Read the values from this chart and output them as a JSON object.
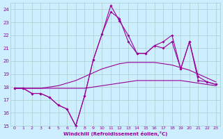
{
  "bg_color": "#cceeff",
  "grid_color": "#aacccc",
  "line_color": "#990099",
  "xlabel": "Windchill (Refroidissement éolien,°C)",
  "xlim": [
    -0.5,
    23.5
  ],
  "ylim": [
    15,
    24.5
  ],
  "yticks": [
    15,
    16,
    17,
    18,
    19,
    20,
    21,
    22,
    23,
    24
  ],
  "xticks": [
    0,
    1,
    2,
    3,
    4,
    5,
    6,
    7,
    8,
    9,
    10,
    11,
    12,
    13,
    14,
    15,
    16,
    17,
    18,
    19,
    20,
    21,
    22,
    23
  ],
  "series": [
    {
      "comment": "flat lower curve - no markers",
      "x": [
        0,
        1,
        2,
        3,
        4,
        5,
        6,
        7,
        8,
        9,
        10,
        11,
        12,
        13,
        14,
        15,
        16,
        17,
        18,
        19,
        20,
        21,
        22,
        23
      ],
      "y": [
        17.9,
        17.9,
        17.9,
        17.9,
        17.9,
        17.9,
        17.9,
        17.9,
        17.9,
        18.0,
        18.1,
        18.2,
        18.3,
        18.4,
        18.5,
        18.5,
        18.5,
        18.5,
        18.5,
        18.5,
        18.4,
        18.3,
        18.2,
        18.1
      ],
      "marker": false
    },
    {
      "comment": "slightly higher flat curve - no markers",
      "x": [
        0,
        1,
        2,
        3,
        4,
        5,
        6,
        7,
        8,
        9,
        10,
        11,
        12,
        13,
        14,
        15,
        16,
        17,
        18,
        19,
        20,
        21,
        22,
        23
      ],
      "y": [
        17.9,
        17.9,
        17.9,
        17.9,
        18.0,
        18.1,
        18.3,
        18.5,
        18.8,
        19.1,
        19.4,
        19.6,
        19.8,
        19.9,
        19.9,
        19.9,
        19.9,
        19.8,
        19.7,
        19.5,
        19.3,
        19.0,
        18.7,
        18.4
      ],
      "marker": false
    },
    {
      "comment": "jagged curve going down then up, with markers",
      "x": [
        0,
        1,
        2,
        3,
        4,
        5,
        6,
        7,
        8,
        9,
        10,
        11,
        12,
        13,
        14,
        15,
        16,
        17,
        18,
        19,
        20,
        21,
        22,
        23
      ],
      "y": [
        17.9,
        17.9,
        17.5,
        17.5,
        17.2,
        16.6,
        16.3,
        15.0,
        17.3,
        20.1,
        22.1,
        23.8,
        23.3,
        21.5,
        20.6,
        20.6,
        21.2,
        21.0,
        21.5,
        19.4,
        21.5,
        18.5,
        18.4,
        18.2
      ],
      "marker": true
    },
    {
      "comment": "second jagged curve similar but offset",
      "x": [
        0,
        1,
        2,
        3,
        4,
        5,
        6,
        7,
        8,
        9,
        10,
        11,
        12,
        13,
        14,
        15,
        16,
        17,
        18,
        19,
        20,
        21,
        22,
        23
      ],
      "y": [
        17.9,
        17.9,
        17.5,
        17.5,
        17.2,
        16.6,
        16.3,
        15.0,
        17.3,
        20.1,
        22.1,
        24.3,
        23.1,
        22.0,
        20.6,
        20.6,
        21.2,
        21.5,
        22.0,
        19.4,
        21.5,
        18.8,
        18.4,
        18.2
      ],
      "marker": true
    }
  ]
}
